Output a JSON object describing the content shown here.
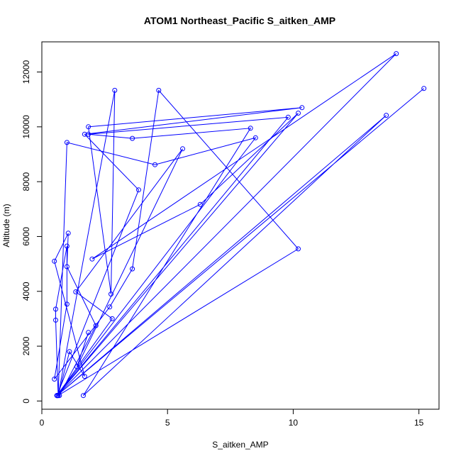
{
  "chart_data": {
    "type": "line",
    "title": "ATOM1 Northeast_Pacific S_aitken_AMP",
    "xlabel": "S_aitken_AMP",
    "ylabel": "Altitude (m)",
    "xlim": [
      0,
      15.8
    ],
    "ylim": [
      -300,
      13100
    ],
    "x_ticks": [
      0,
      5,
      10,
      15
    ],
    "y_ticks": [
      0,
      2000,
      4000,
      6000,
      8000,
      10000,
      12000
    ],
    "x_tick_labels": [
      "0",
      "5",
      "10",
      "15"
    ],
    "y_tick_labels": [
      "0",
      "2000",
      "4000",
      "6000",
      "8000",
      "10000",
      "12000"
    ],
    "grid": false,
    "markers": "open-circle",
    "series": [
      {
        "color": "#0000ff",
        "x": [
          0.65,
          10.2,
          4.65,
          3.6,
          2.7,
          0.5,
          1.0,
          1.0,
          0.55,
          0.55,
          0.65,
          2.9,
          2.75,
          1.85,
          10.35,
          1.7,
          3.85,
          0.6,
          0.6,
          0.7,
          2.15,
          1.0,
          1.05,
          0.5,
          1.7,
          1.1,
          0.65,
          1.0,
          4.5,
          8.5,
          0.6,
          9.8,
          1.85,
          3.6,
          8.3,
          1.65,
          13.7,
          0.6,
          15.2,
          0.6,
          14.1,
          2.0,
          6.3,
          10.2,
          0.6,
          2.8,
          1.35,
          5.6,
          1.4,
          1.85
        ],
        "y": [
          200,
          5550,
          11330,
          4820,
          3430,
          800,
          3530,
          5650,
          3350,
          2950,
          200,
          11330,
          3900,
          10000,
          10700,
          9730,
          7700,
          200,
          200,
          200,
          2750,
          4900,
          6120,
          5100,
          900,
          1800,
          200,
          9430,
          8620,
          9600,
          200,
          10350,
          9730,
          9580,
          9950,
          200,
          10420,
          200,
          11400,
          200,
          12670,
          5180,
          7170,
          10500,
          200,
          3000,
          3980,
          9200,
          1250,
          2500
        ]
      }
    ]
  }
}
